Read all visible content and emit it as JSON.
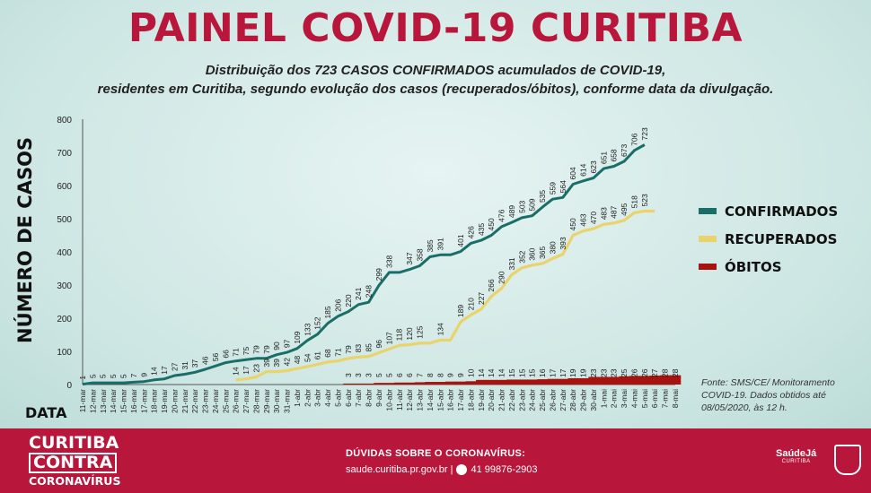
{
  "header": {
    "title": "PAINEL COVID-19 CURITIBA",
    "subtitle_line1": "Distribuição dos 723 CASOS CONFIRMADOS acumulados de COVID-19,",
    "subtitle_line2": "residentes em Curitiba, segundo evolução dos casos (recuperados/óbitos), conforme data da divulgação."
  },
  "chart_data": {
    "type": "line",
    "ylabel": "NÚMERO DE CASOS",
    "xlabel": "DATA",
    "ylim": [
      0,
      800
    ],
    "yticks": [
      "0",
      "100",
      "200",
      "300",
      "400",
      "500",
      "600",
      "700",
      "800"
    ],
    "grid": false,
    "legend_position": "right",
    "categories": [
      "11-mar",
      "12-mar",
      "13-mar",
      "14-mar",
      "15-mar",
      "16-mar",
      "17-mar",
      "18-mar",
      "19-mar",
      "20-mar",
      "21-mar",
      "22-mar",
      "23-mar",
      "24-mar",
      "25-mar",
      "26-mar",
      "27-mar",
      "28-mar",
      "29-mar",
      "30-mar",
      "31-mar",
      "1-abr",
      "2-abr",
      "3-abr",
      "4-abr",
      "5-abr",
      "6-abr",
      "7-abr",
      "8-abr",
      "9-abr",
      "10-abr",
      "11-abr",
      "12-abr",
      "13-abr",
      "14-abr",
      "15-abr",
      "16-abr",
      "17-abr",
      "18-abr",
      "19-abr",
      "20-abr",
      "21-abr",
      "22-abr",
      "23-abr",
      "24-abr",
      "25-abr",
      "26-abr",
      "27-abr",
      "28-abr",
      "29-abr",
      "30-abr",
      "1-mai",
      "2-mai",
      "3-mai",
      "4-mai",
      "5-mai",
      "6-mai",
      "7-mai",
      "8-mai"
    ],
    "series": [
      {
        "name": "CONFIRMADOS",
        "color": "#1a6e68",
        "values": [
          1,
          5,
          5,
          5,
          5,
          7,
          9,
          14,
          17,
          27,
          31,
          37,
          46,
          56,
          66,
          71,
          75,
          79,
          79,
          90,
          97,
          109,
          133,
          152,
          185,
          206,
          220,
          241,
          248,
          299,
          338,
          338,
          347,
          358,
          385,
          391,
          391,
          401,
          426,
          435,
          450,
          476,
          489,
          503,
          509,
          535,
          559,
          564,
          604,
          614,
          623,
          651,
          658,
          673,
          706,
          723,
          null,
          null,
          null
        ],
        "labels": [
          "1",
          "5",
          "5",
          "5",
          "5",
          "7",
          "9",
          "14",
          "17",
          "27",
          "31",
          "37",
          "46",
          "56",
          "66",
          "71",
          "75",
          "79",
          "79",
          "90",
          "97",
          "109",
          "133",
          "152",
          "185",
          "206",
          "220",
          "241",
          "248",
          "299",
          "338",
          "",
          "347",
          "358",
          "385",
          "391",
          "",
          "401",
          "426",
          "435",
          "450",
          "476",
          "489",
          "503",
          "509",
          "535",
          "559",
          "564",
          "604",
          "614",
          "623",
          "651",
          "658",
          "673",
          "706",
          "723",
          "",
          "",
          ""
        ]
      },
      {
        "name": "RECUPERADOS",
        "color": "#e9d36a",
        "values": [
          null,
          null,
          null,
          null,
          null,
          null,
          null,
          null,
          null,
          null,
          null,
          null,
          null,
          null,
          null,
          14,
          17,
          23,
          39,
          39,
          42,
          48,
          54,
          61,
          68,
          71,
          79,
          83,
          85,
          96,
          107,
          118,
          120,
          125,
          125,
          134,
          134,
          189,
          210,
          227,
          266,
          290,
          331,
          352,
          360,
          365,
          380,
          393,
          450,
          463,
          470,
          483,
          487,
          495,
          518,
          523,
          523,
          null,
          null
        ],
        "labels": [
          "",
          "",
          "",
          "",
          "",
          "",
          "",
          "",
          "",
          "",
          "",
          "",
          "",
          "",
          "",
          "14",
          "17",
          "23",
          "39",
          "39",
          "42",
          "48",
          "54",
          "61",
          "68",
          "71",
          "79",
          "83",
          "85",
          "96",
          "107",
          "118",
          "120",
          "125",
          "",
          "134",
          "",
          "189",
          "210",
          "227",
          "266",
          "290",
          "331",
          "352",
          "360",
          "365",
          "380",
          "393",
          "450",
          "463",
          "470",
          "483",
          "487",
          "495",
          "518",
          "523",
          "",
          "",
          ""
        ]
      },
      {
        "name": "ÓBITOS",
        "color": "#a8130f",
        "values": [
          null,
          null,
          null,
          null,
          null,
          null,
          null,
          null,
          null,
          null,
          null,
          null,
          null,
          null,
          null,
          null,
          null,
          null,
          null,
          null,
          null,
          null,
          null,
          null,
          null,
          null,
          3,
          3,
          3,
          5,
          5,
          6,
          6,
          7,
          8,
          8,
          9,
          9,
          10,
          14,
          14,
          14,
          15,
          15,
          15,
          16,
          17,
          17,
          19,
          19,
          23,
          23,
          23,
          25,
          26,
          26,
          27,
          28,
          28
        ],
        "labels": [
          "",
          "",
          "",
          "",
          "",
          "",
          "",
          "",
          "",
          "",
          "",
          "",
          "",
          "",
          "",
          "",
          "",
          "",
          "",
          "",
          "",
          "",
          "",
          "",
          "",
          "",
          "3",
          "3",
          "3",
          "5",
          "5",
          "6",
          "6",
          "7",
          "8",
          "8",
          "9",
          "9",
          "10",
          "14",
          "14",
          "14",
          "15",
          "15",
          "15",
          "16",
          "17",
          "17",
          "19",
          "19",
          "23",
          "23",
          "23",
          "25",
          "26",
          "26",
          "27",
          "28",
          "28"
        ]
      }
    ]
  },
  "source": {
    "text": "Fonte: SMS/CE/ Monitoramento COVID-19. Dados obtidos até 08/05/2020, às 12 h."
  },
  "footer": {
    "brand_line1": "CURITIBA",
    "brand_line2": "CONTRA",
    "brand_line3": "CORONAVÍRUS",
    "contact_title": "DÚVIDAS SOBRE O CORONAVÍRUS:",
    "contact_site": "saude.curitiba.pr.gov.br |",
    "contact_phone": "41 99876-2903",
    "logo_saude": "SaúdeJá",
    "logo_saude_sub": "CURITIBA",
    "phone_icon": "whatsapp-icon",
    "crest_icon": "city-crest-icon"
  }
}
